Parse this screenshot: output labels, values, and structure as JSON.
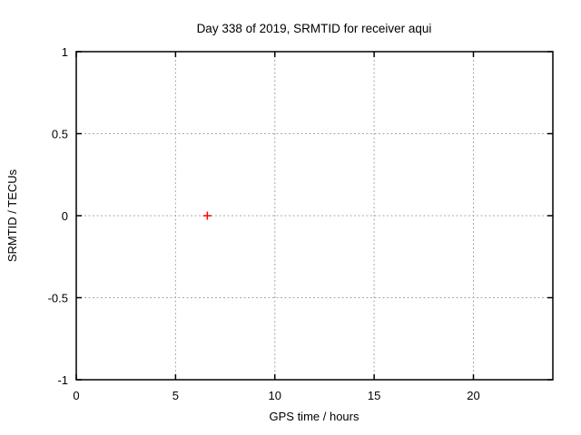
{
  "window": {
    "background": "#ffffff"
  },
  "chart_data": {
    "type": "scatter",
    "title": "Day 338 of 2019, SRMTID for receiver aqui",
    "xlabel": "GPS time / hours",
    "ylabel": "SRMTID / TECUs",
    "xlim": [
      0,
      24
    ],
    "ylim": [
      -1,
      1
    ],
    "xticks": [
      {
        "value": 0,
        "label": "0"
      },
      {
        "value": 5,
        "label": "5"
      },
      {
        "value": 10,
        "label": "10"
      },
      {
        "value": 15,
        "label": "15"
      },
      {
        "value": 20,
        "label": "20"
      }
    ],
    "yticks": [
      {
        "value": -1,
        "label": "-1"
      },
      {
        "value": -0.5,
        "label": "-0.5"
      },
      {
        "value": 0,
        "label": "0"
      },
      {
        "value": 0.5,
        "label": "0.5"
      },
      {
        "value": 1,
        "label": "1"
      }
    ],
    "grid": true,
    "legend_position": "none",
    "series": [
      {
        "name": "srmtid-points",
        "marker": "plus",
        "color": "#ff0000",
        "points": [
          {
            "x": 6.6,
            "y": 0
          }
        ]
      }
    ],
    "colors": {
      "axis": "#000000",
      "grid": "#a8a8a8",
      "text": "#000000",
      "background": "#ffffff"
    }
  }
}
